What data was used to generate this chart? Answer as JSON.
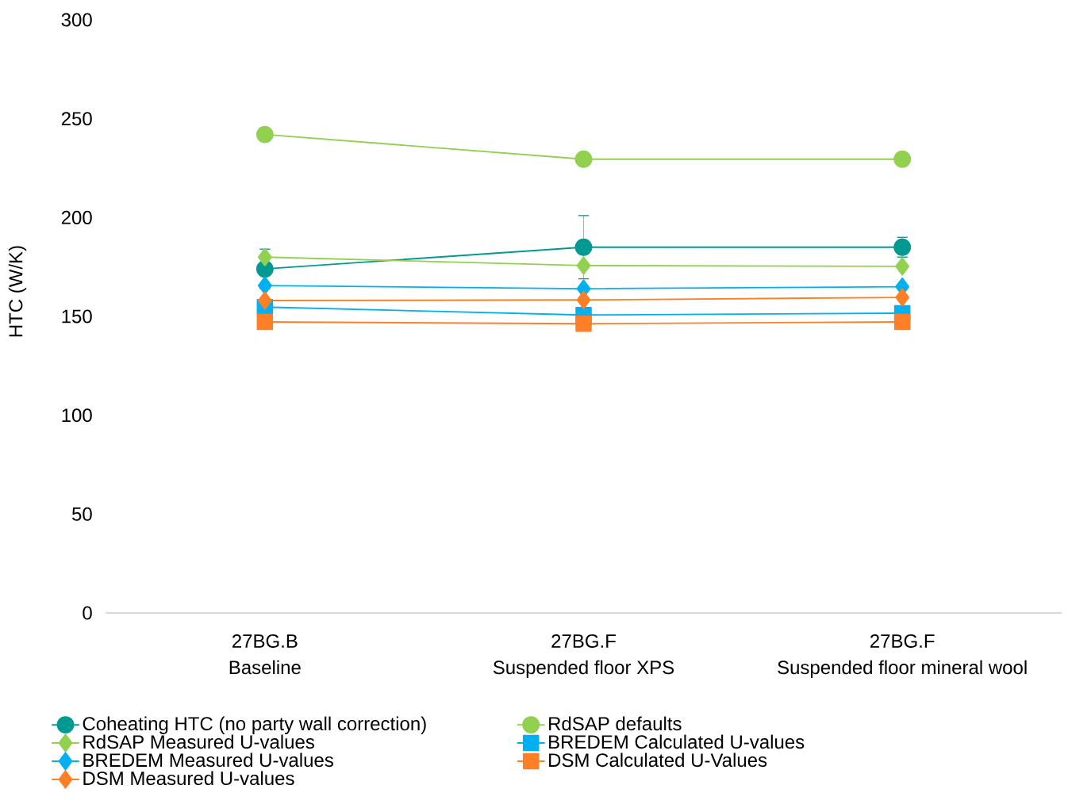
{
  "chart_data": {
    "type": "line",
    "ylabel": "HTC (W/K)",
    "categories": [
      "27BG.B\nBaseline",
      "27BG.F\nSuspended floor XPS",
      "27BG.F\nSuspended floor mineral wool"
    ],
    "ylim": [
      0,
      300
    ],
    "yticks": [
      0,
      50,
      100,
      150,
      200,
      250,
      300
    ],
    "grid": false,
    "legend": "bottom",
    "line_style": "solid",
    "series": [
      {
        "name": "Coheating HTC (no party wall correction)",
        "color": "#009a93",
        "marker": "circle",
        "values": [
          174,
          185,
          185
        ],
        "errors": [
          10,
          16,
          5
        ]
      },
      {
        "name": "RdSAP defaults",
        "color": "#92d050",
        "marker": "circle",
        "values": [
          242,
          229.5,
          229.5
        ]
      },
      {
        "name": "RdSAP Measured U-values",
        "color": "#92d050",
        "marker": "diamond",
        "values": [
          180,
          175.7,
          175.3
        ]
      },
      {
        "name": "BREDEM Calculated U-values",
        "color": "#00b0f0",
        "marker": "square",
        "values": [
          154.7,
          150.7,
          151.6
        ]
      },
      {
        "name": "BREDEM Measured U-values",
        "color": "#00b0f0",
        "marker": "diamond",
        "values": [
          165.6,
          164,
          165
        ]
      },
      {
        "name": "DSM Calculated U-Values",
        "color": "#ff7f27",
        "marker": "square",
        "values": [
          147.2,
          146.3,
          147.2
        ]
      },
      {
        "name": "DSM Measured U-values",
        "color": "#ff7f27",
        "marker": "diamond",
        "values": [
          158,
          158.3,
          159.6
        ]
      }
    ]
  }
}
